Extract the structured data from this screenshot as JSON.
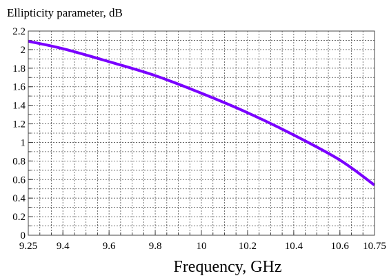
{
  "chart_data": {
    "type": "line",
    "title": "",
    "ylabel": "Ellipticity parameter, dB",
    "xlabel": "Frequency, GHz",
    "xlim": [
      9.25,
      10.75
    ],
    "ylim": [
      0,
      2.2
    ],
    "grid": true,
    "x_minor_step": 0.05,
    "y_minor_step": 0.1,
    "x_ticks": [
      9.25,
      9.4,
      9.6,
      9.8,
      10,
      10.2,
      10.4,
      10.6,
      10.75
    ],
    "x_tick_labels": [
      "9.25",
      "9.4",
      "9.6",
      "9.8",
      "10",
      "10.2",
      "10.4",
      "10.6",
      "10.75"
    ],
    "y_ticks": [
      0,
      0.2,
      0.4,
      0.6,
      0.8,
      1,
      1.2,
      1.4,
      1.6,
      1.8,
      2,
      2.2
    ],
    "y_tick_labels": [
      "0",
      "0.2",
      "0.4",
      "0.6",
      "0.8",
      "1",
      "1.2",
      "1.4",
      "1.6",
      "1.8",
      "2",
      "2.2"
    ],
    "series": [
      {
        "color": "#7a00ff",
        "x": [
          9.25,
          9.4,
          9.6,
          9.8,
          10.0,
          10.2,
          10.4,
          10.6,
          10.75
        ],
        "values": [
          2.09,
          2.01,
          1.87,
          1.72,
          1.53,
          1.32,
          1.08,
          0.81,
          0.54
        ]
      }
    ]
  }
}
